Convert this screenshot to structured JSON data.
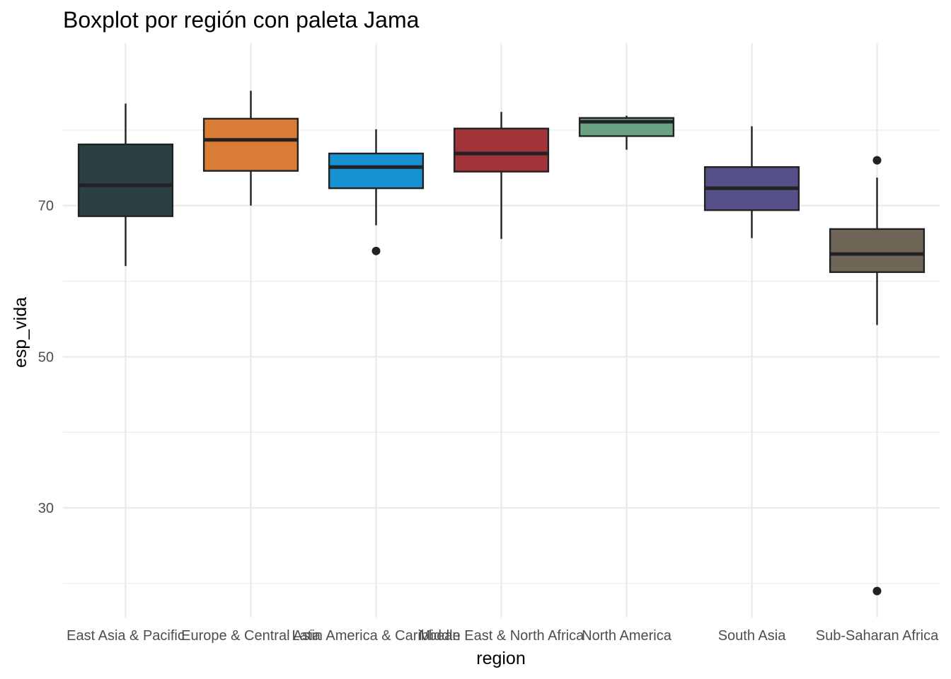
{
  "chart_data": {
    "type": "boxplot",
    "title": "Boxplot por región con paleta Jama",
    "xlabel": "region",
    "ylabel": "esp_vida",
    "ylim": [
      15.5,
      91.5
    ],
    "yticks": [
      30,
      50,
      70
    ],
    "minor_yticks": [
      20,
      40,
      60,
      80
    ],
    "grid": true,
    "legend": "none",
    "categories": [
      "East Asia & Pacific",
      "Europe & Central Asia",
      "Latin America & Caribbean",
      "Middle East & North Africa",
      "North America",
      "South Asia",
      "Sub-Saharan Africa"
    ],
    "boxes": [
      {
        "category": "East Asia & Pacific",
        "min": 62.0,
        "q1": 68.6,
        "median": 72.7,
        "q3": 78.1,
        "max": 83.5,
        "outliers": [],
        "color": "#2B3F44"
      },
      {
        "category": "Europe & Central Asia",
        "min": 70.0,
        "q1": 74.6,
        "median": 78.7,
        "q3": 81.5,
        "max": 85.2,
        "outliers": [],
        "color": "#DA7C35"
      },
      {
        "category": "Latin America & Caribbean",
        "min": 67.4,
        "q1": 72.3,
        "median": 75.1,
        "q3": 76.9,
        "max": 80.1,
        "outliers": [
          64.0
        ],
        "color": "#1591D1"
      },
      {
        "category": "Middle East & North Africa",
        "min": 65.6,
        "q1": 74.5,
        "median": 76.9,
        "q3": 80.2,
        "max": 82.4,
        "outliers": [],
        "color": "#A23338"
      },
      {
        "category": "North America",
        "min": 77.4,
        "q1": 79.2,
        "median": 81.1,
        "q3": 81.6,
        "max": 81.9,
        "outliers": [],
        "color": "#69A383"
      },
      {
        "category": "South Asia",
        "min": 65.7,
        "q1": 69.4,
        "median": 72.3,
        "q3": 75.1,
        "max": 80.5,
        "outliers": [],
        "color": "#565089"
      },
      {
        "category": "Sub-Saharan Africa",
        "min": 54.2,
        "q1": 61.2,
        "median": 63.6,
        "q3": 66.9,
        "max": 73.7,
        "outliers": [
          76.0,
          19.0
        ],
        "color": "#706657"
      }
    ]
  }
}
